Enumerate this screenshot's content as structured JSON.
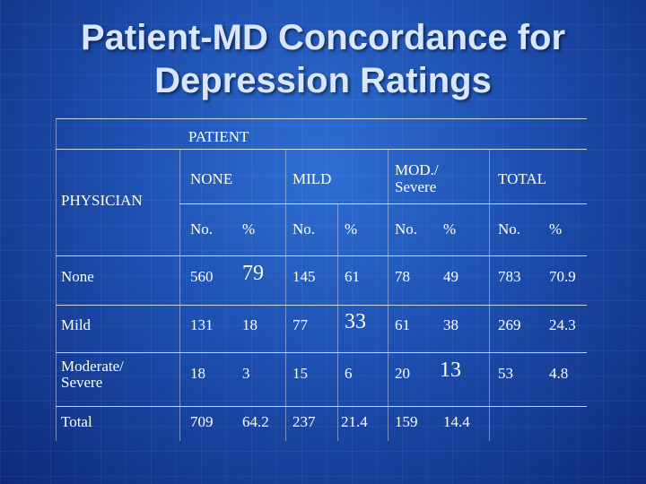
{
  "title": {
    "line1": "Patient-MD Concordance for",
    "line2": "Depression Ratings"
  },
  "table": {
    "patient_label": "PATIENT",
    "physician_label": "PHYSICIAN",
    "categories": {
      "none": "NONE",
      "mild": "MILD",
      "mod_line1": "MOD./",
      "mod_line2": "Severe",
      "total": "TOTAL"
    },
    "subheaders": [
      "No.",
      "%",
      "No.",
      "%",
      "No.",
      "%",
      "No.",
      "%"
    ],
    "rows": [
      {
        "label_line1": "None",
        "label_line2": "",
        "values": [
          "560",
          "79",
          "145",
          "61",
          "78",
          "49",
          "783",
          "70.9"
        ]
      },
      {
        "label_line1": "Mild",
        "label_line2": "",
        "values": [
          "131",
          "18",
          "77",
          "33",
          "61",
          "38",
          "269",
          "24.3"
        ]
      },
      {
        "label_line1": "Moderate/",
        "label_line2": "Severe",
        "values": [
          "18",
          "3",
          "15",
          "6",
          "20",
          "13",
          "53",
          "4.8"
        ]
      },
      {
        "label_line1": "Total",
        "label_line2": "",
        "values": [
          "709",
          "64.2",
          "237",
          "21.4",
          "159",
          "14.4",
          "",
          ""
        ]
      }
    ]
  }
}
